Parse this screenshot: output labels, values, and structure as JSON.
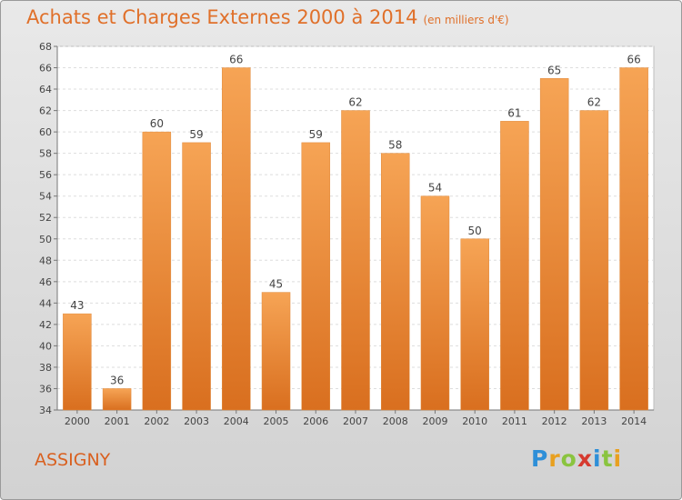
{
  "chart_data": {
    "type": "bar",
    "title": "Achats et Charges Externes 2000 à 2014",
    "subtitle": "(en milliers d'€)",
    "categories": [
      "2000",
      "2001",
      "2002",
      "2003",
      "2004",
      "2005",
      "2006",
      "2007",
      "2008",
      "2009",
      "2010",
      "2011",
      "2012",
      "2013",
      "2014"
    ],
    "values": [
      43,
      36,
      60,
      59,
      66,
      45,
      59,
      62,
      58,
      54,
      50,
      61,
      65,
      62,
      66
    ],
    "ylim": [
      34,
      68
    ],
    "ytick_step": 2,
    "grid": true,
    "bar_color_top": "#f6a455",
    "bar_color_bottom": "#d96f1f"
  },
  "place_name": "ASSIGNY",
  "logo": {
    "letters": [
      "P",
      "r",
      "o",
      "x",
      "i",
      "t",
      "i"
    ],
    "colors": [
      "#2e8fd8",
      "#e8a020",
      "#8ac43f",
      "#d63a2f",
      "#2e8fd8",
      "#8ac43f",
      "#e8a020"
    ]
  }
}
